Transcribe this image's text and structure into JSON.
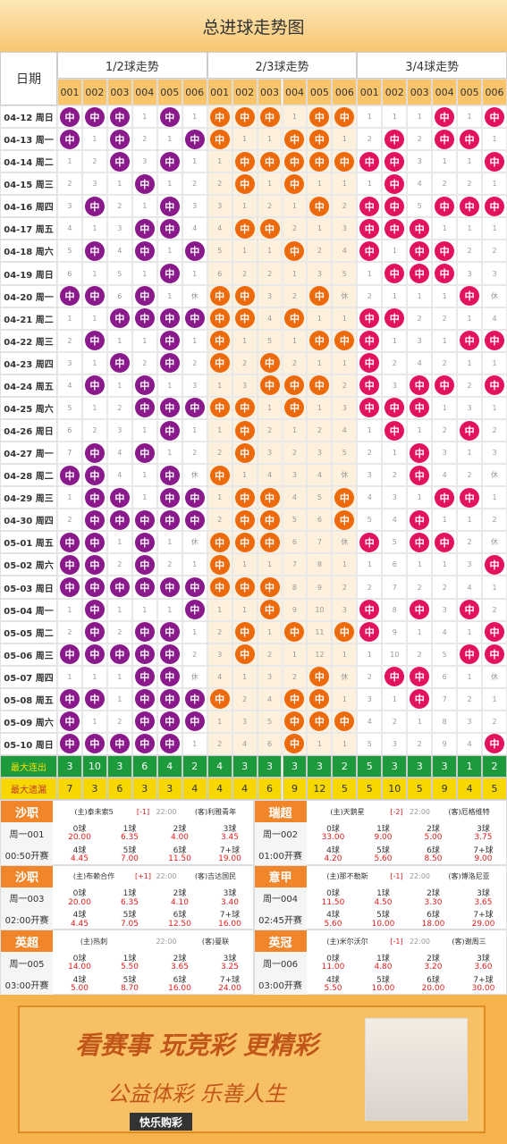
{
  "header": {
    "title": "总进球走势图",
    "date_label": "日期",
    "groups": [
      "1/2球走势",
      "2/3球走势",
      "3/4球走势"
    ],
    "codes": [
      "001",
      "002",
      "003",
      "004",
      "005",
      "006"
    ]
  },
  "rows": [
    {
      "date": "04-12 周日",
      "cells": [
        "中",
        "中",
        "中",
        1,
        "中",
        1,
        "中",
        "中",
        "中",
        1,
        "中",
        "中",
        1,
        1,
        1,
        "中",
        1,
        "中"
      ]
    },
    {
      "date": "04-13 周一",
      "cells": [
        "中",
        1,
        "中",
        2,
        1,
        "中",
        "中",
        1,
        1,
        "中",
        "中",
        1,
        2,
        "中",
        2,
        "中",
        "中",
        1
      ]
    },
    {
      "date": "04-14 周二",
      "cells": [
        1,
        2,
        "中",
        3,
        "中",
        1,
        1,
        "中",
        "中",
        "中",
        "中",
        "中",
        "中",
        "中",
        3,
        1,
        1,
        "中"
      ]
    },
    {
      "date": "04-15 周三",
      "cells": [
        2,
        3,
        1,
        "中",
        1,
        2,
        2,
        "中",
        1,
        "中",
        1,
        1,
        1,
        "中",
        4,
        2,
        2,
        1
      ]
    },
    {
      "date": "04-16 周四",
      "cells": [
        3,
        "中",
        2,
        1,
        "中",
        3,
        3,
        1,
        2,
        1,
        "中",
        2,
        "中",
        "中",
        5,
        "中",
        "中",
        "中"
      ]
    },
    {
      "date": "04-17 周五",
      "cells": [
        4,
        1,
        3,
        "中",
        "中",
        4,
        4,
        "中",
        "中",
        2,
        1,
        3,
        "中",
        "中",
        "中",
        1,
        1,
        1
      ]
    },
    {
      "date": "04-18 周六",
      "cells": [
        5,
        "中",
        4,
        "中",
        1,
        "中",
        5,
        1,
        1,
        "中",
        2,
        4,
        "中",
        1,
        "中",
        "中",
        2,
        2
      ]
    },
    {
      "date": "04-19 周日",
      "cells": [
        6,
        1,
        5,
        1,
        "中",
        1,
        6,
        2,
        2,
        1,
        3,
        5,
        1,
        "中",
        "中",
        "中",
        3,
        3
      ]
    },
    {
      "date": "04-20 周一",
      "cells": [
        "中",
        "中",
        6,
        "中",
        1,
        "休",
        "中",
        "中",
        3,
        2,
        "中",
        "休",
        2,
        1,
        1,
        1,
        "中",
        "休"
      ]
    },
    {
      "date": "04-21 周二",
      "cells": [
        1,
        1,
        "中",
        "中",
        "中",
        "中",
        "中",
        "中",
        4,
        "中",
        1,
        1,
        "中",
        "中",
        2,
        2,
        1,
        4
      ]
    },
    {
      "date": "04-22 周三",
      "cells": [
        2,
        "中",
        1,
        1,
        "中",
        1,
        "中",
        1,
        5,
        1,
        "中",
        "中",
        "中",
        1,
        3,
        1,
        "中",
        "中"
      ]
    },
    {
      "date": "04-23 周四",
      "cells": [
        3,
        1,
        "中",
        2,
        "中",
        2,
        "中",
        2,
        "中",
        2,
        1,
        1,
        "中",
        2,
        4,
        2,
        1,
        1
      ]
    },
    {
      "date": "04-24 周五",
      "cells": [
        4,
        "中",
        1,
        "中",
        1,
        3,
        1,
        3,
        "中",
        "中",
        "中",
        2,
        "中",
        3,
        "中",
        "中",
        2,
        "中"
      ]
    },
    {
      "date": "04-25 周六",
      "cells": [
        5,
        1,
        2,
        "中",
        "中",
        "中",
        "中",
        "中",
        1,
        "中",
        1,
        3,
        "中",
        "中",
        "中",
        1,
        3,
        1
      ]
    },
    {
      "date": "04-26 周日",
      "cells": [
        6,
        2,
        3,
        1,
        "中",
        1,
        1,
        "中",
        2,
        1,
        2,
        4,
        1,
        "中",
        1,
        2,
        "中",
        2
      ]
    },
    {
      "date": "04-27 周一",
      "cells": [
        7,
        "中",
        4,
        "中",
        1,
        2,
        2,
        "中",
        3,
        2,
        3,
        5,
        2,
        1,
        "中",
        3,
        1,
        3
      ]
    },
    {
      "date": "04-28 周二",
      "cells": [
        "中",
        "中",
        4,
        1,
        "中",
        "休",
        "中",
        1,
        4,
        3,
        4,
        "休",
        3,
        2,
        "中",
        4,
        2,
        "休"
      ]
    },
    {
      "date": "04-29 周三",
      "cells": [
        1,
        "中",
        "中",
        1,
        "中",
        "中",
        1,
        "中",
        "中",
        4,
        5,
        "中",
        4,
        3,
        1,
        "中",
        "中",
        1
      ]
    },
    {
      "date": "04-30 周四",
      "cells": [
        2,
        "中",
        "中",
        "中",
        "中",
        "中",
        2,
        "中",
        "中",
        5,
        6,
        "中",
        5,
        4,
        "中",
        1,
        1,
        2
      ]
    },
    {
      "date": "05-01 周五",
      "cells": [
        "中",
        "中",
        1,
        "中",
        1,
        "休",
        "中",
        "中",
        "中",
        6,
        7,
        "休",
        "中",
        5,
        "中",
        "中",
        2,
        "休"
      ]
    },
    {
      "date": "05-02 周六",
      "cells": [
        "中",
        "中",
        2,
        "中",
        2,
        1,
        "中",
        1,
        1,
        7,
        8,
        1,
        1,
        6,
        1,
        1,
        3,
        "中"
      ]
    },
    {
      "date": "05-03 周日",
      "cells": [
        "中",
        "中",
        "中",
        "中",
        "中",
        "中",
        "中",
        "中",
        "中",
        8,
        9,
        2,
        2,
        7,
        2,
        2,
        4,
        1
      ]
    },
    {
      "date": "05-04 周一",
      "cells": [
        1,
        "中",
        1,
        1,
        1,
        "中",
        1,
        1,
        "中",
        9,
        10,
        3,
        "中",
        8,
        "中",
        3,
        "中",
        2
      ]
    },
    {
      "date": "05-05 周二",
      "cells": [
        2,
        "中",
        2,
        "中",
        "中",
        1,
        2,
        "中",
        1,
        "中",
        11,
        "中",
        "中",
        9,
        1,
        4,
        1,
        "中"
      ]
    },
    {
      "date": "05-06 周三",
      "cells": [
        "中",
        "中",
        "中",
        "中",
        "中",
        2,
        3,
        "中",
        2,
        1,
        12,
        1,
        1,
        10,
        2,
        5,
        "中",
        "中"
      ]
    },
    {
      "date": "05-07 周四",
      "cells": [
        1,
        1,
        1,
        "中",
        "中",
        "休",
        4,
        1,
        3,
        2,
        "中",
        "休",
        2,
        "中",
        "中",
        6,
        1,
        "休"
      ]
    },
    {
      "date": "05-08 周五",
      "cells": [
        "中",
        "中",
        1,
        "中",
        "中",
        "中",
        "中",
        2,
        4,
        "中",
        "中",
        1,
        3,
        1,
        "中",
        7,
        2,
        1
      ]
    },
    {
      "date": "05-09 周六",
      "cells": [
        "中",
        1,
        2,
        "中",
        "中",
        "中",
        1,
        3,
        5,
        "中",
        "中",
        "中",
        4,
        2,
        1,
        8,
        3,
        2
      ]
    },
    {
      "date": "05-10 周日",
      "cells": [
        "中",
        "中",
        "中",
        "中",
        "中",
        1,
        2,
        4,
        6,
        "中",
        1,
        1,
        5,
        3,
        2,
        9,
        4,
        "中"
      ]
    }
  ],
  "stats": [
    {
      "label": "最大连出",
      "values": [
        3,
        10,
        3,
        6,
        4,
        2,
        4,
        3,
        3,
        3,
        3,
        2,
        5,
        3,
        3,
        3,
        1,
        2
      ]
    },
    {
      "label": "最大遗漏",
      "values": [
        7,
        3,
        6,
        3,
        3,
        4,
        4,
        4,
        6,
        9,
        12,
        5,
        5,
        10,
        5,
        9,
        4,
        5
      ]
    }
  ],
  "matches": [
    {
      "league": "沙职",
      "number": "周一001",
      "start": "00:50开赛",
      "home": "(主)泰未索5",
      "handicap": "[-1]",
      "time": "22:00",
      "away": "(客)利雅青年",
      "odds": [
        [
          "0球",
          "20.00"
        ],
        [
          "1球",
          "6.35"
        ],
        [
          "2球",
          "4.00"
        ],
        [
          "3球",
          "3.45"
        ],
        [
          "4球",
          "4.45"
        ],
        [
          "5球",
          "7.00"
        ],
        [
          "6球",
          "11.50"
        ],
        [
          "7+球",
          "19.00"
        ]
      ]
    },
    {
      "league": "瑞超",
      "number": "周一002",
      "start": "01:00开赛",
      "home": "(主)天鹅星",
      "handicap": "[-2]",
      "time": "22:00",
      "away": "(客)厄格维特",
      "odds": [
        [
          "0球",
          "33.00"
        ],
        [
          "1球",
          "9.00"
        ],
        [
          "2球",
          "5.00"
        ],
        [
          "3球",
          "3.75"
        ],
        [
          "4球",
          "4.20"
        ],
        [
          "5球",
          "5.60"
        ],
        [
          "6球",
          "8.50"
        ],
        [
          "7+球",
          "9.00"
        ]
      ]
    },
    {
      "league": "沙职",
      "number": "周一003",
      "start": "02:00开赛",
      "home": "(主)布赖合作",
      "handicap": "[+1]",
      "time": "22:00",
      "away": "(客)吉达国民",
      "odds": [
        [
          "0球",
          "20.00"
        ],
        [
          "1球",
          "6.35"
        ],
        [
          "2球",
          "4.10"
        ],
        [
          "3球",
          "3.40"
        ],
        [
          "4球",
          "4.45"
        ],
        [
          "5球",
          "7.05"
        ],
        [
          "6球",
          "12.50"
        ],
        [
          "7+球",
          "16.00"
        ]
      ]
    },
    {
      "league": "意甲",
      "number": "周一004",
      "start": "02:45开赛",
      "home": "(主)那不勒斯",
      "handicap": "[-1]",
      "time": "22:00",
      "away": "(客)博洛尼亚",
      "odds": [
        [
          "0球",
          "11.50"
        ],
        [
          "1球",
          "4.50"
        ],
        [
          "2球",
          "3.30"
        ],
        [
          "3球",
          "3.65"
        ],
        [
          "4球",
          "5.60"
        ],
        [
          "5球",
          "10.00"
        ],
        [
          "6球",
          "18.00"
        ],
        [
          "7+球",
          "29.00"
        ]
      ]
    },
    {
      "league": "英超",
      "number": "周一005",
      "start": "03:00开赛",
      "home": "(主)热刺",
      "time": "22:00",
      "away": "(客)曼联",
      "odds": [
        [
          "0球",
          "14.00"
        ],
        [
          "1球",
          "5.50"
        ],
        [
          "2球",
          "3.65"
        ],
        [
          "3球",
          "3.25"
        ],
        [
          "4球",
          "5.00"
        ],
        [
          "5球",
          "8.70"
        ],
        [
          "6球",
          "16.00"
        ],
        [
          "7+球",
          "24.00"
        ]
      ]
    },
    {
      "league": "英冠",
      "number": "周一006",
      "start": "03:00开赛",
      "home": "(主)米尔沃尔",
      "handicap": "[-1]",
      "time": "22:00",
      "away": "(客)谢周三",
      "odds": [
        [
          "0球",
          "11.00"
        ],
        [
          "1球",
          "4.80"
        ],
        [
          "2球",
          "3.20"
        ],
        [
          "3球",
          "3.60"
        ],
        [
          "4球",
          "5.50"
        ],
        [
          "5球",
          "10.00"
        ],
        [
          "6球",
          "20.00"
        ],
        [
          "7+球",
          "30.00"
        ]
      ]
    }
  ],
  "banner": {
    "slogan1": "看赛事 玩竞彩 更精彩",
    "slogan2": "公益体彩 乐善人生",
    "brand": "快乐购彩"
  }
}
